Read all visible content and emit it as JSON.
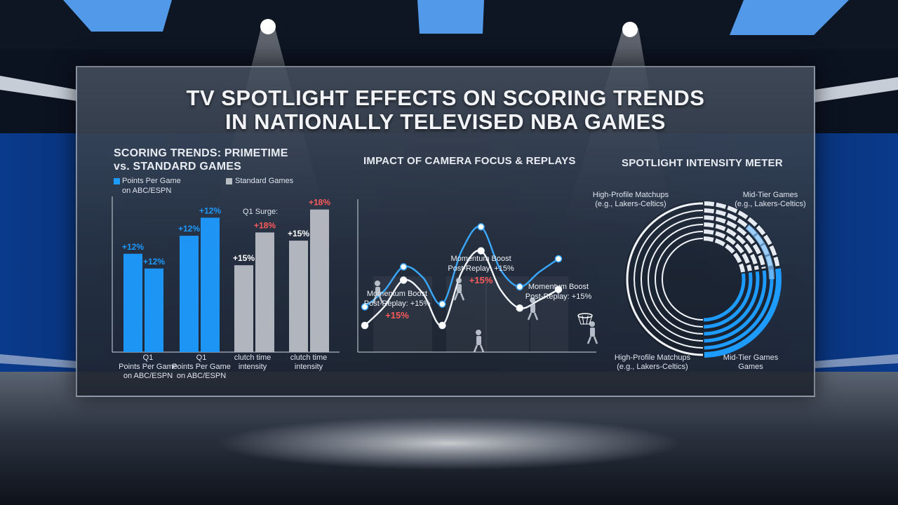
{
  "title_line1": "TV SPOTLIGHT EFFECTS ON SCORING TRENDS",
  "title_line2": "IN NATIONALLY TELEVISED NBA GAMES",
  "colors": {
    "blue": "#1e9bff",
    "gray": "#b9bdc4",
    "red": "#ff5a5a",
    "panel_border": "#c8d2e1"
  },
  "bar_section": {
    "title_line1": "SCORING TRENDS: PRIMETIME",
    "title_line2": "vs. STANDARD GAMES",
    "legend": [
      {
        "label_line1": "Points Per Game",
        "label_line2": "on ABC/ESPN",
        "color": "#1e9bff"
      },
      {
        "label_line1": "Standard Games",
        "label_line2": "",
        "color": "#b9bdc4"
      }
    ],
    "annotation": "Q1 Surge:",
    "groups": [
      {
        "label_line1": "Q1",
        "label_line2": "Points Per Game",
        "label_line3": "on ABC/ESPN"
      },
      {
        "label_line1": "Q1",
        "label_line2": "Points Per Game",
        "label_line3": "on ABC/ESPN"
      },
      {
        "label_line1": "clutch time",
        "label_line2": "intensity",
        "label_line3": ""
      },
      {
        "label_line1": "clutch time",
        "label_line2": "intensity",
        "label_line3": ""
      }
    ]
  },
  "chart_data": [
    {
      "type": "bar",
      "categories": [
        "Q1 Points Per Game on ABC/ESPN",
        "Q1 Points Per Game on ABC/ESPN",
        "clutch time intensity",
        "clutch time intensity"
      ],
      "bars": [
        {
          "group": 0,
          "value": 12,
          "label": "+12%",
          "color": "blue",
          "label_color": "blue"
        },
        {
          "group": 0,
          "value": 10.2,
          "label": "+12%",
          "color": "blue",
          "label_color": "blue"
        },
        {
          "group": 1,
          "value": 14.2,
          "label": "+12%",
          "color": "blue",
          "label_color": "blue"
        },
        {
          "group": 1,
          "value": 16.4,
          "label": "+12%",
          "color": "blue",
          "label_color": "blue"
        },
        {
          "group": 2,
          "value": 10.6,
          "label": "+15%",
          "color": "gray",
          "label_color": "white"
        },
        {
          "group": 2,
          "value": 14.6,
          "label": "+18%",
          "color": "gray",
          "label_color": "red"
        },
        {
          "group": 3,
          "value": 13.6,
          "label": "+15%",
          "color": "gray",
          "label_color": "white"
        },
        {
          "group": 3,
          "value": 17.4,
          "label": "+18%",
          "color": "gray",
          "label_color": "red"
        }
      ],
      "ylim": [
        0,
        19
      ]
    },
    {
      "type": "line",
      "title": "IMPACT OF CAMERA FOCUS & REPLAYS",
      "x": [
        0,
        1,
        2,
        3,
        4,
        5,
        6,
        7,
        8,
        9,
        10
      ],
      "series": [
        {
          "values": [
            3.4,
            4.6,
            6.4,
            5.6,
            3.6,
            7.6,
            9.4,
            6.2,
            4.9,
            6.0,
            7.0
          ],
          "color": "blue"
        },
        {
          "values": [
            2.0,
            3.4,
            5.4,
            4.4,
            2.0,
            6.0,
            7.6,
            4.7,
            3.3,
            3.9,
            4.7
          ],
          "color": "white"
        }
      ],
      "annotations": [
        {
          "line1": "Momentum Boost",
          "line2": "Post-Replay: +15%",
          "value": "+15%"
        },
        {
          "line1": "Momentum Boost",
          "line2": "Post-Replay: +15%",
          "value": "+15%"
        },
        {
          "line1": "Momentum Boost",
          "line2": "Post-Replay: +15%",
          "value": ""
        }
      ],
      "ylim": [
        0,
        12
      ]
    },
    {
      "type": "gauge",
      "title": "SPOTLIGHT INTENSITY METER",
      "labels_top": [
        {
          "line1": "High-Profile Matchups",
          "line2": "(e.g., Lakers-Celtics)"
        },
        {
          "line1": "Mid-Tier Games",
          "line2": "(e.g., Lakers-Celtics)"
        }
      ],
      "labels_bottom": [
        {
          "line1": "High-Profile Matchups",
          "line2": "(e.g., Lakers-Celtics)"
        },
        {
          "line1": "Mid-Tier Games",
          "line2": "Games"
        }
      ],
      "rings": 5
    }
  ]
}
